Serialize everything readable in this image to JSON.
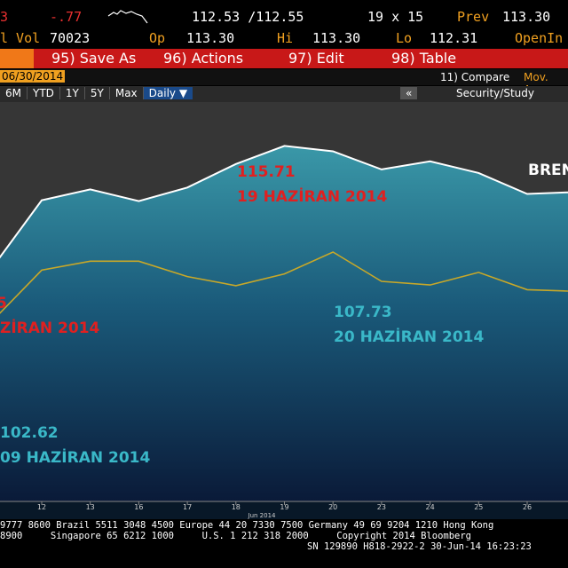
{
  "quote_bar": {
    "last": "3",
    "change": "-.77",
    "bid_ask": "112.53 /112.55",
    "size": "19 x 15",
    "prev_label": "Prev",
    "prev": "113.30",
    "vol_label": "l Vol",
    "vol": "70023",
    "open_label": "Op",
    "open": "113.30",
    "high_label": "Hi",
    "high": "113.30",
    "low_label": "Lo",
    "low": "112.31",
    "oi_label": "OpenIn"
  },
  "toolbar": {
    "buttons": [
      "95) Save As",
      "96) Actions",
      "97) Edit",
      "98) Table"
    ],
    "date": "06/30/2014",
    "compare": "11) Compare",
    "mov_avg": "Mov. Avg",
    "ranges": [
      "6M",
      "YTD",
      "1Y",
      "5Y",
      "Max"
    ],
    "frequency": "Daily ▼",
    "collapse": "«",
    "study": "Security/Study"
  },
  "chart_data": {
    "type": "line",
    "x_sublabel": "Jun 2014",
    "categories": [
      null,
      "12",
      "13",
      "16",
      "17",
      "18",
      "19",
      "20",
      "23",
      "24",
      "25",
      "26",
      null
    ],
    "ylim": [
      89,
      119
    ],
    "series": [
      {
        "name": "BREN",
        "color": "#ffffff",
        "values": [
          106.65,
          111.62,
          112.44,
          111.56,
          112.58,
          114.35,
          115.71,
          115.3,
          113.94,
          114.55,
          113.67,
          112.1,
          112.24
        ]
      },
      {
        "color": "#c8a828",
        "values": [
          102.62,
          106.37,
          107.05,
          107.05,
          105.89,
          105.21,
          106.09,
          107.73,
          105.53,
          105.26,
          106.21,
          104.91,
          104.78
        ]
      }
    ],
    "annotations": [
      {
        "text": "115.71",
        "color": "#e02020"
      },
      {
        "text": "19 HAZİRAN 2014",
        "color": "#e02020"
      },
      {
        "text": "5",
        "color": "#e02020"
      },
      {
        "text": "ZİRAN 2014",
        "color": "#e02020"
      },
      {
        "text": "107.73",
        "color": "#3ab8c8"
      },
      {
        "text": "20 HAZİRAN 2014",
        "color": "#3ab8c8"
      },
      {
        "text": "102.62",
        "color": "#3ab8c8"
      },
      {
        "text": "09 HAZİRAN 2014",
        "color": "#3ab8c8"
      }
    ]
  },
  "footer": [
    "9777 8600 Brazil 5511 3048 4500 Europe 44 20 7330 7500 Germany 49 69 9204 1210 Hong Kong",
    "8900     Singapore 65 6212 1000     U.S. 1 212 318 2000     Copyright 2014 Bloomberg",
    "SN 129890 H818-2922-2 30-Jun-14 16:23:23"
  ]
}
